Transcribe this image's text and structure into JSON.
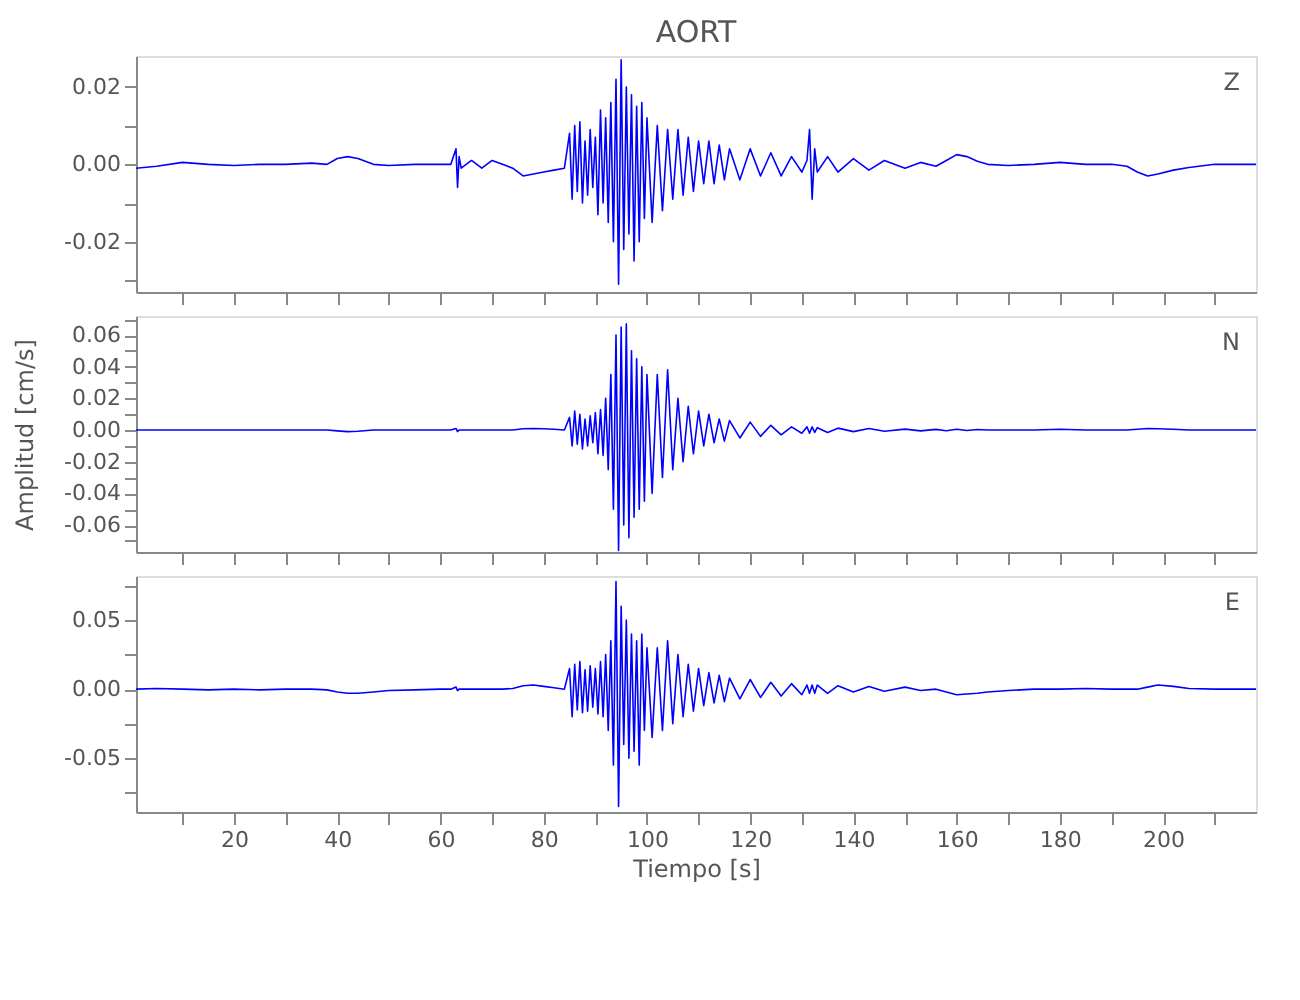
{
  "chart_data": [
    {
      "type": "line",
      "title": "AORT",
      "annotations": [
        "Z"
      ],
      "tick_labels": "y",
      "grid": false,
      "line_style": "solid",
      "marker": "none",
      "xlim": [
        1,
        218
      ],
      "xticks": [
        {
          "value": 10,
          "label": null
        },
        {
          "value": 20,
          "label": null
        },
        {
          "value": 30,
          "label": null
        },
        {
          "value": 40,
          "label": null
        },
        {
          "value": 50,
          "label": null
        },
        {
          "value": 60,
          "label": null
        },
        {
          "value": 70,
          "label": null
        },
        {
          "value": 80,
          "label": null
        },
        {
          "value": 90,
          "label": null
        },
        {
          "value": 100,
          "label": null
        },
        {
          "value": 110,
          "label": null
        },
        {
          "value": 120,
          "label": null
        },
        {
          "value": 130,
          "label": null
        },
        {
          "value": 140,
          "label": null
        },
        {
          "value": 150,
          "label": null
        },
        {
          "value": 160,
          "label": null
        },
        {
          "value": 170,
          "label": null
        },
        {
          "value": 180,
          "label": null
        },
        {
          "value": 190,
          "label": null
        },
        {
          "value": 200,
          "label": null
        },
        {
          "value": 210,
          "label": null
        }
      ],
      "ylim": [
        -0.033,
        0.028
      ],
      "yticks": [
        {
          "value": -0.03,
          "label": null
        },
        {
          "value": -0.02,
          "label": "-0.02"
        },
        {
          "value": -0.01,
          "label": null
        },
        {
          "value": 0,
          "label": "0.00"
        },
        {
          "value": 0.01,
          "label": null
        },
        {
          "value": 0.02,
          "label": "0.02"
        }
      ],
      "x": [
        1,
        5,
        10,
        15,
        20,
        25,
        30,
        35,
        38,
        40,
        42,
        44,
        47,
        50,
        55,
        60,
        62,
        63,
        63.3,
        63.6,
        64,
        66,
        68,
        70,
        72,
        74,
        76,
        78,
        80,
        82,
        84,
        85,
        85.5,
        86,
        86.5,
        87,
        87.5,
        88,
        88.5,
        89,
        89.5,
        90,
        90.5,
        91,
        91.5,
        92,
        92.5,
        93,
        93.5,
        94,
        94.5,
        95,
        95.5,
        96,
        96.5,
        97,
        97.5,
        98,
        98.5,
        99,
        99.5,
        100,
        101,
        102,
        103,
        104,
        105,
        106,
        107,
        108,
        109,
        110,
        111,
        112,
        113,
        114,
        115,
        116,
        118,
        120,
        122,
        124,
        126,
        128,
        130,
        131,
        131.5,
        132,
        132.5,
        133,
        135,
        137,
        140,
        143,
        146,
        150,
        153,
        156,
        158,
        160,
        162,
        164,
        166,
        170,
        175,
        180,
        185,
        190,
        193,
        195,
        197,
        199,
        202,
        205,
        210,
        215,
        218
      ],
      "series": [
        {
          "color": "#0000ff",
          "values": [
            -0.001,
            -0.0005,
            0.0005,
            0,
            -0.0003,
            0,
            0,
            0.0003,
            0,
            0.0015,
            0.002,
            0.0015,
            0,
            -0.0003,
            0,
            0,
            0,
            0.004,
            -0.006,
            0.002,
            -0.001,
            0.001,
            -0.001,
            0.001,
            0,
            -0.001,
            -0.003,
            -0.0025,
            -0.002,
            -0.0015,
            -0.001,
            0.008,
            -0.009,
            0.01,
            -0.007,
            0.011,
            -0.01,
            0.006,
            -0.008,
            0.009,
            -0.006,
            0.007,
            -0.013,
            0.014,
            -0.01,
            0.012,
            -0.015,
            0.016,
            -0.02,
            0.022,
            -0.031,
            0.027,
            -0.022,
            0.02,
            -0.018,
            0.018,
            -0.025,
            0.015,
            -0.02,
            0.016,
            -0.014,
            0.012,
            -0.015,
            0.01,
            -0.012,
            0.009,
            -0.009,
            0.009,
            -0.008,
            0.007,
            -0.007,
            0.006,
            -0.005,
            0.006,
            -0.005,
            0.005,
            -0.004,
            0.004,
            -0.004,
            0.004,
            -0.003,
            0.003,
            -0.003,
            0.002,
            -0.002,
            0.001,
            0.009,
            -0.009,
            0.004,
            -0.002,
            0.002,
            -0.002,
            0.0015,
            -0.0015,
            0.001,
            -0.001,
            0.0005,
            -0.0005,
            0.001,
            0.0025,
            0.002,
            0.0008,
            0,
            -0.0003,
            0,
            0.0005,
            0,
            0,
            -0.0005,
            -0.002,
            -0.003,
            -0.0025,
            -0.0015,
            -0.0008,
            0,
            0,
            0
          ]
        }
      ]
    },
    {
      "type": "line",
      "annotations": [
        "N"
      ],
      "ylabel": "Amplitud [cm/s]",
      "tick_labels": "y",
      "grid": false,
      "line_style": "solid",
      "marker": "none",
      "xlim": [
        1,
        218
      ],
      "xticks": [
        {
          "value": 10,
          "label": null
        },
        {
          "value": 20,
          "label": null
        },
        {
          "value": 30,
          "label": null
        },
        {
          "value": 40,
          "label": null
        },
        {
          "value": 50,
          "label": null
        },
        {
          "value": 60,
          "label": null
        },
        {
          "value": 70,
          "label": null
        },
        {
          "value": 80,
          "label": null
        },
        {
          "value": 90,
          "label": null
        },
        {
          "value": 100,
          "label": null
        },
        {
          "value": 110,
          "label": null
        },
        {
          "value": 120,
          "label": null
        },
        {
          "value": 130,
          "label": null
        },
        {
          "value": 140,
          "label": null
        },
        {
          "value": 150,
          "label": null
        },
        {
          "value": 160,
          "label": null
        },
        {
          "value": 170,
          "label": null
        },
        {
          "value": 180,
          "label": null
        },
        {
          "value": 190,
          "label": null
        },
        {
          "value": 200,
          "label": null
        },
        {
          "value": 210,
          "label": null
        }
      ],
      "ylim": [
        -0.077,
        0.072
      ],
      "yticks": [
        {
          "value": -0.07,
          "label": null
        },
        {
          "value": -0.06,
          "label": "-0.06"
        },
        {
          "value": -0.05,
          "label": null
        },
        {
          "value": -0.04,
          "label": "-0.04"
        },
        {
          "value": -0.03,
          "label": null
        },
        {
          "value": -0.02,
          "label": "-0.02"
        },
        {
          "value": -0.01,
          "label": null
        },
        {
          "value": 0,
          "label": "0.00"
        },
        {
          "value": 0.01,
          "label": null
        },
        {
          "value": 0.02,
          "label": "0.02"
        },
        {
          "value": 0.03,
          "label": null
        },
        {
          "value": 0.04,
          "label": "0.04"
        },
        {
          "value": 0.05,
          "label": null
        },
        {
          "value": 0.06,
          "label": "0.06"
        },
        {
          "value": 0.07,
          "label": null
        }
      ],
      "x": [
        1,
        5,
        10,
        15,
        20,
        25,
        30,
        35,
        38,
        40,
        42,
        44,
        47,
        50,
        55,
        60,
        62,
        63,
        63.3,
        63.6,
        64,
        66,
        68,
        70,
        72,
        74,
        76,
        78,
        80,
        82,
        84,
        85,
        85.5,
        86,
        86.5,
        87,
        87.5,
        88,
        88.5,
        89,
        89.5,
        90,
        90.5,
        91,
        91.5,
        92,
        92.5,
        93,
        93.5,
        94,
        94.5,
        95,
        95.5,
        96,
        96.5,
        97,
        97.5,
        98,
        98.5,
        99,
        99.5,
        100,
        101,
        102,
        103,
        104,
        105,
        106,
        107,
        108,
        109,
        110,
        111,
        112,
        113,
        114,
        115,
        116,
        118,
        120,
        122,
        124,
        126,
        128,
        130,
        131,
        131.5,
        132,
        132.5,
        133,
        135,
        137,
        140,
        143,
        146,
        150,
        153,
        156,
        158,
        160,
        162,
        164,
        166,
        170,
        175,
        180,
        185,
        190,
        193,
        195,
        197,
        199,
        202,
        205,
        210,
        215,
        218
      ],
      "series": [
        {
          "color": "#0000ff",
          "values": [
            0,
            0,
            0,
            0,
            0,
            0,
            0,
            0,
            0,
            -0.0005,
            -0.001,
            -0.0008,
            0,
            0,
            0,
            0,
            0,
            0.001,
            -0.001,
            0,
            0,
            0,
            0,
            0,
            0,
            0,
            0.0008,
            0.001,
            0.0008,
            0.0005,
            0,
            0.008,
            -0.01,
            0.012,
            -0.009,
            0.01,
            -0.012,
            0.007,
            -0.01,
            0.009,
            -0.008,
            0.011,
            -0.015,
            0.013,
            -0.016,
            0.02,
            -0.025,
            0.035,
            -0.05,
            0.06,
            -0.076,
            0.065,
            -0.06,
            0.067,
            -0.068,
            0.05,
            -0.055,
            0.045,
            -0.05,
            0.04,
            -0.045,
            0.035,
            -0.04,
            0.035,
            -0.03,
            0.038,
            -0.025,
            0.02,
            -0.02,
            0.015,
            -0.015,
            0.012,
            -0.01,
            0.01,
            -0.008,
            0.007,
            -0.007,
            0.006,
            -0.005,
            0.005,
            -0.004,
            0.003,
            -0.003,
            0.002,
            -0.002,
            0.002,
            -0.002,
            0.002,
            -0.0015,
            0.0015,
            -0.0015,
            0.0012,
            -0.001,
            0.001,
            -0.0008,
            0.0006,
            -0.0005,
            0.0004,
            -0.0004,
            0.0005,
            -0.0003,
            0.0003,
            0,
            0,
            0,
            0.0005,
            0,
            0,
            0,
            0.0005,
            0.001,
            0.0008,
            0.0005,
            0,
            0,
            0,
            0
          ]
        }
      ]
    },
    {
      "type": "line",
      "annotations": [
        "E"
      ],
      "xlabel": "Tiempo [s]",
      "grid": false,
      "line_style": "solid",
      "marker": "none",
      "xlim": [
        1,
        218
      ],
      "xticks": [
        {
          "value": 10,
          "label": null
        },
        20,
        {
          "value": 30,
          "label": null
        },
        40,
        {
          "value": 50,
          "label": null
        },
        60,
        {
          "value": 70,
          "label": null
        },
        80,
        {
          "value": 90,
          "label": null
        },
        100,
        {
          "value": 110,
          "label": null
        },
        120,
        {
          "value": 130,
          "label": null
        },
        140,
        {
          "value": 150,
          "label": null
        },
        160,
        {
          "value": 170,
          "label": null
        },
        180,
        {
          "value": 190,
          "label": null
        },
        200,
        {
          "value": 210,
          "label": null
        }
      ],
      "ylim": [
        -0.089,
        0.082
      ],
      "yticks": [
        {
          "value": -0.075,
          "label": null
        },
        {
          "value": -0.05,
          "label": "-0.05"
        },
        {
          "value": -0.025,
          "label": null
        },
        {
          "value": 0,
          "label": "0.00"
        },
        {
          "value": 0.025,
          "label": null
        },
        {
          "value": 0.05,
          "label": "0.05"
        },
        {
          "value": 0.075,
          "label": null
        }
      ],
      "x": [
        1,
        5,
        10,
        15,
        20,
        25,
        30,
        35,
        38,
        40,
        42,
        44,
        47,
        50,
        55,
        60,
        62,
        63,
        63.3,
        63.6,
        64,
        66,
        68,
        70,
        72,
        74,
        76,
        78,
        80,
        82,
        84,
        85,
        85.5,
        86,
        86.5,
        87,
        87.5,
        88,
        88.5,
        89,
        89.5,
        90,
        90.5,
        91,
        91.5,
        92,
        92.5,
        93,
        93.5,
        94,
        94.5,
        95,
        95.5,
        96,
        96.5,
        97,
        97.5,
        98,
        98.5,
        99,
        99.5,
        100,
        101,
        102,
        103,
        104,
        105,
        106,
        107,
        108,
        109,
        110,
        111,
        112,
        113,
        114,
        115,
        116,
        118,
        120,
        122,
        124,
        126,
        128,
        130,
        131,
        131.5,
        132,
        132.5,
        133,
        135,
        137,
        140,
        143,
        146,
        150,
        153,
        156,
        158,
        160,
        162,
        164,
        166,
        170,
        175,
        180,
        185,
        190,
        193,
        195,
        197,
        199,
        202,
        205,
        210,
        215,
        218
      ],
      "series": [
        {
          "color": "#0000ff",
          "values": [
            0,
            0.0005,
            0,
            -0.0005,
            0,
            -0.0005,
            0,
            0,
            -0.0005,
            -0.002,
            -0.003,
            -0.003,
            -0.002,
            -0.001,
            -0.0005,
            0,
            0,
            0.0015,
            -0.001,
            0,
            0,
            0,
            0,
            0,
            0,
            0.0005,
            0.0025,
            0.003,
            0.002,
            0.001,
            0,
            0.015,
            -0.02,
            0.018,
            -0.015,
            0.02,
            -0.017,
            0.014,
            -0.016,
            0.017,
            -0.013,
            0.015,
            -0.018,
            0.02,
            -0.02,
            0.025,
            -0.03,
            0.035,
            -0.055,
            0.078,
            -0.085,
            0.06,
            -0.04,
            0.05,
            -0.05,
            0.04,
            -0.045,
            0.035,
            -0.055,
            0.04,
            -0.03,
            0.03,
            -0.035,
            0.03,
            -0.03,
            0.035,
            -0.025,
            0.025,
            -0.02,
            0.018,
            -0.016,
            0.015,
            -0.012,
            0.012,
            -0.01,
            0.01,
            -0.009,
            0.008,
            -0.007,
            0.007,
            -0.006,
            0.005,
            -0.005,
            0.004,
            -0.004,
            0.003,
            -0.003,
            0.003,
            -0.003,
            0.003,
            -0.003,
            0.0025,
            -0.002,
            0.002,
            -0.0015,
            0.0015,
            -0.001,
            0,
            -0.002,
            -0.004,
            -0.0035,
            -0.003,
            -0.002,
            -0.001,
            0,
            0,
            0.0005,
            0,
            0,
            0,
            0.0015,
            0.003,
            0.002,
            0.0005,
            0,
            0,
            0
          ]
        }
      ]
    }
  ]
}
